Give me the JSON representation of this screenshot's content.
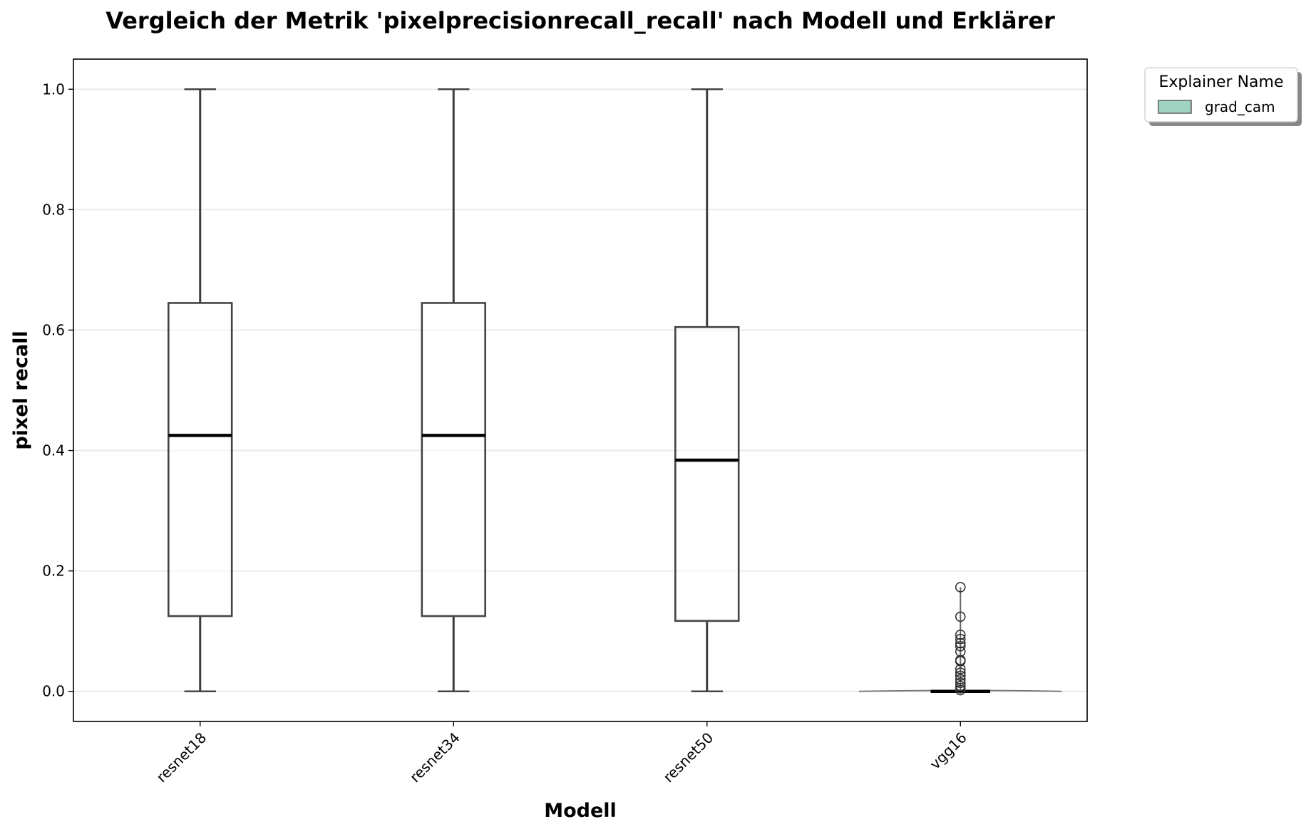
{
  "chart_data": {
    "type": "box",
    "title": "Vergleich der Metrik 'pixelprecisionrecall_recall' nach Modell und Erklärer",
    "xlabel": "Modell",
    "ylabel": "pixel recall",
    "ylim": [
      -0.05,
      1.05
    ],
    "yticks": [
      0.0,
      0.2,
      0.4,
      0.6,
      0.8,
      1.0
    ],
    "ytick_labels": [
      "0.0",
      "0.2",
      "0.4",
      "0.6",
      "0.8",
      "1.0"
    ],
    "grid": "y",
    "categories": [
      "resnet18",
      "resnet34",
      "resnet50",
      "vgg16"
    ],
    "legend": {
      "title": "Explainer Name",
      "placement": "outside-top-right",
      "entries": [
        {
          "label": "grad_cam",
          "color": "#9fd2c0"
        }
      ]
    },
    "series": [
      {
        "name": "grad_cam",
        "color": "#9fd2c0",
        "boxes": [
          {
            "category": "resnet18",
            "min": 0.0,
            "q1": 0.125,
            "median": 0.425,
            "q3": 0.645,
            "max": 1.0,
            "outliers": []
          },
          {
            "category": "resnet34",
            "min": 0.0,
            "q1": 0.125,
            "median": 0.425,
            "q3": 0.645,
            "max": 1.0,
            "outliers": []
          },
          {
            "category": "resnet50",
            "min": 0.0,
            "q1": 0.117,
            "median": 0.384,
            "q3": 0.605,
            "max": 1.0,
            "outliers": []
          },
          {
            "category": "vgg16",
            "min": 0.0,
            "q1": 0.0,
            "median": 0.0,
            "q3": 0.0,
            "max": 0.0,
            "outliers": [
              0.173,
              0.124,
              0.094,
              0.087,
              0.08,
              0.075,
              0.066,
              0.052,
              0.05,
              0.037,
              0.031,
              0.026,
              0.02,
              0.014,
              0.009,
              0.005,
              0.002
            ]
          }
        ]
      }
    ]
  }
}
